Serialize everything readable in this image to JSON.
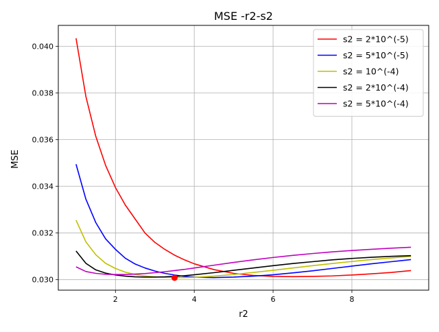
{
  "chart_data": {
    "type": "line",
    "title": "MSE -r2-s2",
    "xlabel": "r2",
    "ylabel": "MSE",
    "xlim": [
      0.55,
      9.95
    ],
    "ylim": [
      0.02955,
      0.0409
    ],
    "xticks": [
      2,
      4,
      6,
      8
    ],
    "xtick_labels": [
      "2",
      "4",
      "6",
      "8"
    ],
    "yticks": [
      0.03,
      0.032,
      0.034,
      0.036,
      0.038,
      0.04
    ],
    "ytick_labels": [
      "0.030",
      "0.032",
      "0.034",
      "0.036",
      "0.038",
      "0.040"
    ],
    "grid": true,
    "legend_position": "top-right",
    "x": [
      1.0,
      1.25,
      1.5,
      1.75,
      2.0,
      2.25,
      2.5,
      2.75,
      3.0,
      3.25,
      3.5,
      3.75,
      4.0,
      4.5,
      5.0,
      5.5,
      6.0,
      6.5,
      7.0,
      7.5,
      8.0,
      8.5,
      9.0,
      9.5
    ],
    "series": [
      {
        "name": "s2 = 2*10^(-5)",
        "color": "#ff0000",
        "values": [
          0.04035,
          0.03785,
          0.03615,
          0.0349,
          0.03395,
          0.0332,
          0.0326,
          0.032,
          0.0316,
          0.0313,
          0.03105,
          0.03085,
          0.03068,
          0.03043,
          0.03027,
          0.03018,
          0.03014,
          0.03013,
          0.03014,
          0.03016,
          0.0302,
          0.03025,
          0.03031,
          0.03039
        ]
      },
      {
        "name": "s2 = 5*10^(-5)",
        "color": "#0000ff",
        "values": [
          0.03495,
          0.03345,
          0.03245,
          0.03175,
          0.0313,
          0.03092,
          0.03067,
          0.0305,
          0.03037,
          0.03027,
          0.0302,
          0.03014,
          0.03011,
          0.03009,
          0.03011,
          0.03015,
          0.03021,
          0.03029,
          0.03038,
          0.03048,
          0.03058,
          0.03068,
          0.03077,
          0.03086
        ]
      },
      {
        "name": "s2 = 10^(-4)",
        "color": "#bfbf00",
        "values": [
          0.03255,
          0.03162,
          0.03107,
          0.0307,
          0.03048,
          0.03032,
          0.03022,
          0.03016,
          0.03012,
          0.0301,
          0.03009,
          0.03009,
          0.0301,
          0.03015,
          0.03022,
          0.03031,
          0.0304,
          0.0305,
          0.0306,
          0.03069,
          0.03078,
          0.03086,
          0.03093,
          0.031
        ]
      },
      {
        "name": "s2 = 2*10^(-4)",
        "color": "#000000",
        "values": [
          0.03123,
          0.0307,
          0.03042,
          0.03028,
          0.0302,
          0.03015,
          0.03012,
          0.03011,
          0.03011,
          0.03012,
          0.03014,
          0.03017,
          0.03021,
          0.0303,
          0.0304,
          0.0305,
          0.0306,
          0.03069,
          0.03077,
          0.03085,
          0.03091,
          0.03096,
          0.031,
          0.03103
        ]
      },
      {
        "name": "s2 = 5*10^(-4)",
        "color": "#bf00bf",
        "values": [
          0.03055,
          0.03035,
          0.03027,
          0.03023,
          0.03022,
          0.03022,
          0.03024,
          0.03026,
          0.0303,
          0.03034,
          0.03039,
          0.03044,
          0.0305,
          0.03062,
          0.03074,
          0.03085,
          0.03095,
          0.03104,
          0.03112,
          0.03119,
          0.03125,
          0.0313,
          0.03135,
          0.03139
        ]
      }
    ],
    "highlight_point": {
      "x": 3.5,
      "y": 0.03008,
      "color": "#ff0000"
    }
  }
}
